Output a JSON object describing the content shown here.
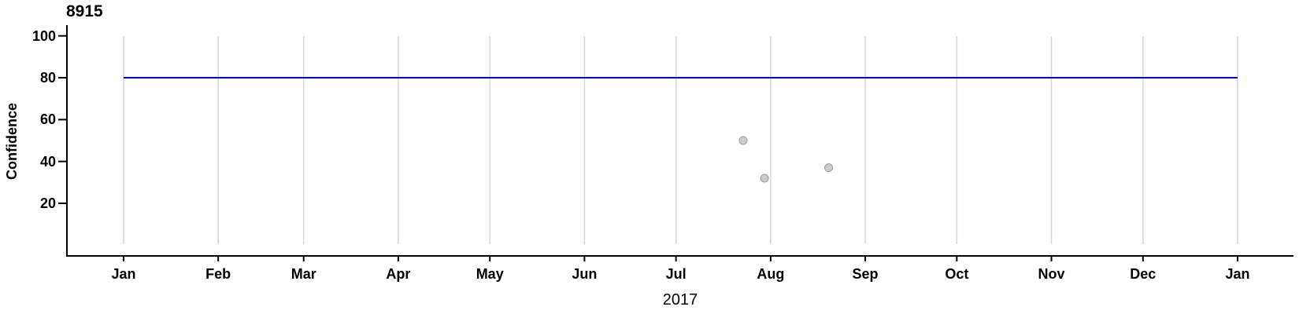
{
  "chart_data": {
    "type": "scatter",
    "title": "8915",
    "ylabel": "Confidence",
    "xlabel": "2017",
    "x_tick_labels": [
      "Jan",
      "Feb",
      "Mar",
      "Apr",
      "May",
      "Jun",
      "Jul",
      "Aug",
      "Sep",
      "Oct",
      "Nov",
      "Dec",
      "Jan"
    ],
    "y_ticks": [
      20,
      40,
      60,
      80,
      100
    ],
    "ylim": [
      0,
      100
    ],
    "reference_line": {
      "y": 80,
      "color": "#0000CC"
    },
    "points": [
      {
        "date": "2017-07-23",
        "value": 50
      },
      {
        "date": "2017-07-30",
        "value": 32
      },
      {
        "date": "2017-08-20",
        "value": 37
      }
    ],
    "point_style": {
      "fill": "#CCCCCC",
      "stroke": "#999999"
    },
    "grid_color": "#D6D6D6",
    "axis_color": "#000000"
  }
}
